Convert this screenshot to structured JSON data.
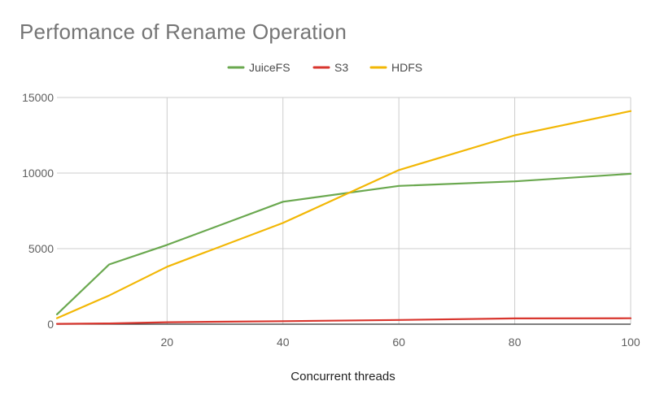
{
  "chart_data": {
    "type": "line",
    "title": "Perfomance of Rename Operation",
    "xlabel": "Concurrent threads",
    "ylabel": "",
    "x": [
      1,
      10,
      20,
      40,
      60,
      80,
      100
    ],
    "xlim": [
      1,
      100
    ],
    "ylim": [
      0,
      15000
    ],
    "xticks": [
      20,
      40,
      60,
      80,
      100
    ],
    "yticks": [
      0,
      5000,
      10000,
      15000
    ],
    "grid": true,
    "legend_position": "top-center",
    "series": [
      {
        "name": "JuiceFS",
        "color": "#6aa84f",
        "values": [
          650,
          3950,
          5250,
          8100,
          9150,
          9450,
          9950
        ]
      },
      {
        "name": "S3",
        "color": "#d8362e",
        "values": [
          20,
          50,
          130,
          200,
          280,
          380,
          390
        ]
      },
      {
        "name": "HDFS",
        "color": "#f2b705",
        "values": [
          400,
          1900,
          3800,
          6700,
          10200,
          12500,
          14100
        ]
      }
    ]
  }
}
